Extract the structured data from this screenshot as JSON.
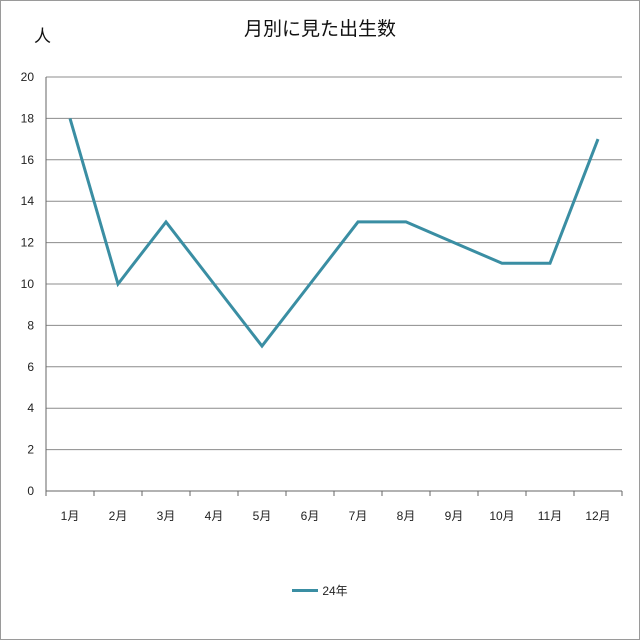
{
  "chart_data": {
    "type": "line",
    "title": "月別に見た出生数",
    "ylabel": "人",
    "xlabel": "",
    "categories": [
      "1月",
      "2月",
      "3月",
      "4月",
      "5月",
      "6月",
      "7月",
      "8月",
      "9月",
      "10月",
      "11月",
      "12月"
    ],
    "series": [
      {
        "name": "24年",
        "values": [
          18,
          10,
          13,
          10,
          7,
          10,
          13,
          13,
          12,
          11,
          11,
          17
        ],
        "color": "#3a8ea3"
      }
    ],
    "ylim": [
      0,
      20
    ],
    "yticks": [
      0,
      2,
      4,
      6,
      8,
      10,
      12,
      14,
      16,
      18,
      20
    ],
    "grid": true,
    "legend": "bottom"
  }
}
